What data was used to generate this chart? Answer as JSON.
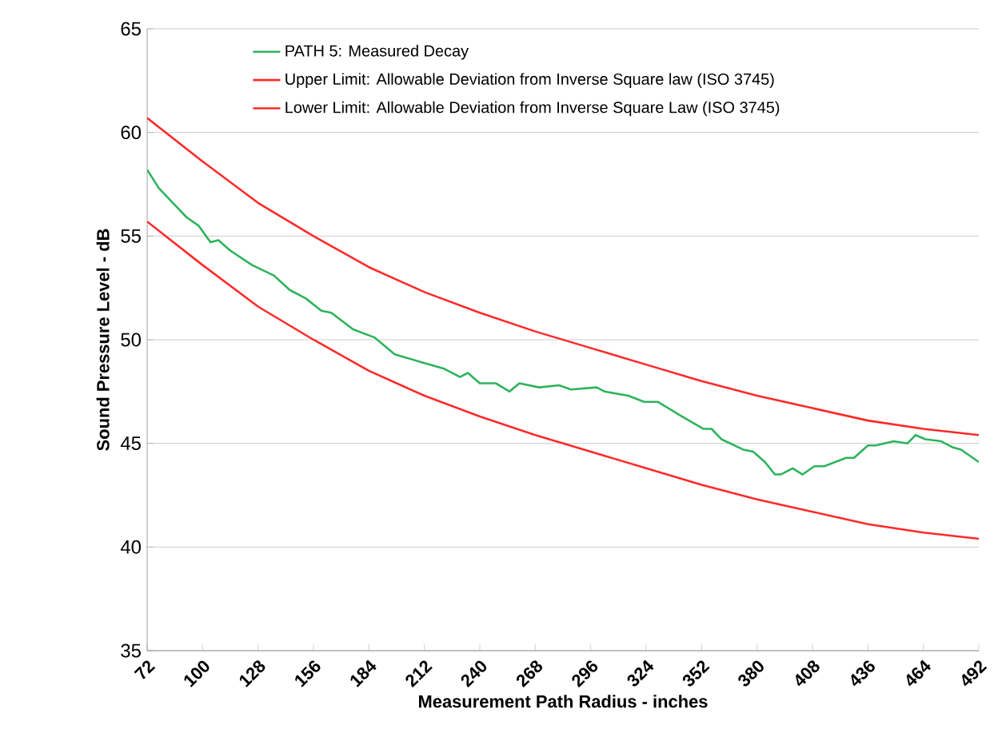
{
  "chart_data": {
    "type": "line",
    "xlabel": "Measurement Path Radius - inches",
    "ylabel": "Sound Pressure Level - dB",
    "xlim": [
      72,
      492
    ],
    "xticks": [
      72,
      100,
      128,
      156,
      184,
      212,
      240,
      268,
      296,
      324,
      352,
      380,
      408,
      436,
      464,
      492
    ],
    "ylim": [
      35,
      65
    ],
    "yticks": [
      35,
      40,
      45,
      50,
      55,
      60,
      65
    ],
    "grid": "y",
    "legend": "top",
    "marker": "none",
    "line_style": "solid",
    "series": [
      {
        "name": "PATH 5: Measured Decay",
        "color": "#2eb35c",
        "x": [
          72,
          78,
          85,
          92,
          98,
          104,
          108,
          114,
          125,
          136,
          144,
          152,
          160,
          165,
          176,
          187,
          197,
          211,
          222,
          230,
          234,
          240,
          248,
          255,
          260,
          270,
          280,
          286,
          299,
          303,
          315,
          323,
          330,
          342,
          353,
          357,
          362,
          373,
          378,
          384,
          389,
          392,
          398,
          403,
          409,
          414,
          425,
          429,
          436,
          440,
          449,
          456,
          460,
          465,
          473,
          479,
          483,
          492
        ],
        "values": [
          58.2,
          57.3,
          56.6,
          55.9,
          55.5,
          54.7,
          54.8,
          54.3,
          53.6,
          53.1,
          52.4,
          52.0,
          51.4,
          51.3,
          50.5,
          50.1,
          49.3,
          48.9,
          48.6,
          48.2,
          48.4,
          47.9,
          47.9,
          47.5,
          47.9,
          47.7,
          47.8,
          47.6,
          47.7,
          47.5,
          47.3,
          47.0,
          47.0,
          46.3,
          45.7,
          45.7,
          45.2,
          44.7,
          44.6,
          44.1,
          43.5,
          43.5,
          43.8,
          43.5,
          43.9,
          43.9,
          44.3,
          44.3,
          44.9,
          44.9,
          45.1,
          45.0,
          45.4,
          45.2,
          45.1,
          44.8,
          44.7,
          44.1
        ]
      },
      {
        "name": "Upper Limit: Allowable Deviation from Inverse Square law (ISO 3745)",
        "color": "#ff2a2a",
        "x": [
          72,
          100,
          128,
          156,
          184,
          212,
          240,
          268,
          296,
          324,
          352,
          380,
          408,
          436,
          464,
          492
        ],
        "values": [
          60.7,
          58.6,
          56.6,
          55.0,
          53.5,
          52.3,
          51.3,
          50.4,
          49.6,
          48.8,
          48.0,
          47.3,
          46.7,
          46.1,
          45.7,
          45.4
        ]
      },
      {
        "name": "Lower Limit: Allowable Deviation from Inverse Square Law (ISO 3745)",
        "color": "#ff2a2a",
        "x": [
          72,
          100,
          128,
          156,
          184,
          212,
          240,
          268,
          296,
          324,
          352,
          380,
          408,
          436,
          464,
          492
        ],
        "values": [
          55.7,
          53.6,
          51.6,
          50.0,
          48.5,
          47.3,
          46.3,
          45.4,
          44.6,
          43.8,
          43.0,
          42.3,
          41.7,
          41.1,
          40.7,
          40.4
        ]
      }
    ]
  }
}
